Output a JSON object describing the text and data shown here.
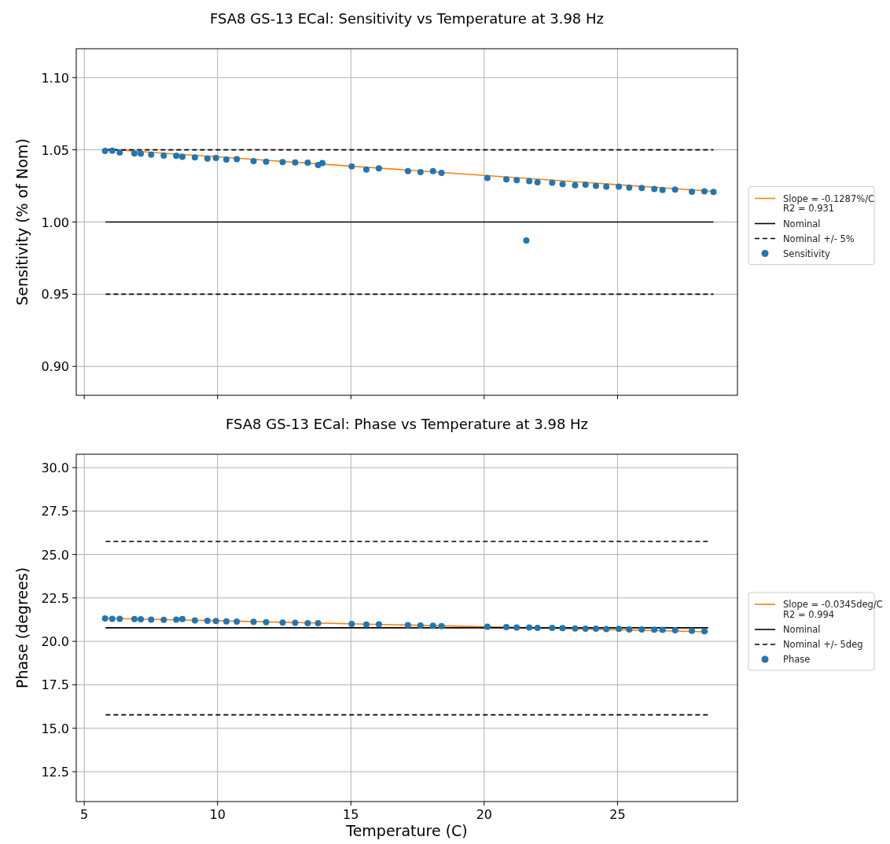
{
  "chart_data": [
    {
      "type": "scatter",
      "title": "FSA8 GS-13 ECal: Sensitivity vs Temperature at 3.98 Hz",
      "ylabel": "Sensitivity (% of Nom)",
      "xlim": [
        4.7,
        29.5
      ],
      "ylim": [
        0.88,
        1.12
      ],
      "xticks": [
        5,
        10,
        15,
        20,
        25
      ],
      "yticks": [
        {
          "value": 0.9,
          "label": "0.90"
        },
        {
          "value": 0.95,
          "label": "0.95"
        },
        {
          "value": 1.0,
          "label": "1.00"
        },
        {
          "value": 1.05,
          "label": "1.05"
        },
        {
          "value": 1.1,
          "label": "1.10"
        }
      ],
      "tick_labels": "y",
      "grid": true,
      "legend": "right",
      "series": [
        {
          "type": "line",
          "name": "Slope = -0.1287%/C\nR2 = 0.931",
          "color": "#ff7f0e",
          "x": [
            5.8,
            28.6
          ],
          "values": [
            1.0505,
            1.0212
          ],
          "line_style": "solid"
        },
        {
          "type": "line",
          "name": "Nominal",
          "color": "#000000",
          "x": [
            5.8,
            28.6
          ],
          "values": [
            1.0,
            1.0
          ],
          "line_style": "solid"
        },
        {
          "type": "line",
          "name": "Nominal +/- 5%",
          "color": "#000000",
          "x": [
            5.8,
            28.6
          ],
          "values": [
            1.05,
            1.05
          ],
          "line_style": "dashed"
        },
        {
          "type": "line",
          "color": "#000000",
          "x": [
            5.8,
            28.6
          ],
          "values": [
            0.95,
            0.95
          ],
          "line_style": "dashed"
        },
        {
          "name": "Sensitivity",
          "color": "#1f77b4",
          "marker": "circle",
          "x": [
            5.78,
            6.05,
            6.33,
            6.88,
            7.12,
            7.51,
            7.98,
            8.45,
            8.68,
            9.15,
            9.62,
            9.94,
            10.33,
            10.72,
            11.35,
            11.82,
            12.44,
            12.91,
            13.38,
            13.77,
            13.93,
            15.03,
            15.58,
            16.05,
            17.14,
            17.61,
            18.08,
            18.4,
            20.12,
            20.83,
            21.22,
            21.58,
            21.69,
            22.0,
            22.55,
            22.94,
            23.41,
            23.8,
            24.19,
            24.58,
            25.05,
            25.44,
            25.91,
            26.38,
            26.69,
            27.16,
            27.79,
            28.26,
            28.6
          ],
          "values": [
            1.0492,
            1.0494,
            1.0482,
            1.0475,
            1.0474,
            1.0466,
            1.046,
            1.0458,
            1.0452,
            1.0447,
            1.044,
            1.0443,
            1.0432,
            1.0435,
            1.0422,
            1.0418,
            1.0415,
            1.0412,
            1.0411,
            1.0395,
            1.0408,
            1.0385,
            1.0363,
            1.0372,
            1.0352,
            1.0345,
            1.0352,
            1.034,
            1.0305,
            1.0295,
            1.029,
            0.9872,
            1.0283,
            1.0275,
            1.0272,
            1.0262,
            1.0255,
            1.0258,
            1.025,
            1.0245,
            1.0245,
            1.0238,
            1.0236,
            1.0228,
            1.0222,
            1.0225,
            1.021,
            1.0212,
            1.0208
          ]
        }
      ]
    },
    {
      "type": "scatter",
      "title": "FSA8 GS-13 ECal: Phase vs Temperature at 3.98 Hz",
      "xlabel": "Temperature (C)",
      "ylabel": "Phase (degrees)",
      "xlim": [
        4.7,
        29.5
      ],
      "ylim": [
        10.78,
        30.77
      ],
      "xticks": [
        5,
        10,
        15,
        20,
        25
      ],
      "yticks": [
        {
          "value": 12.5,
          "label": "12.5"
        },
        {
          "value": 15,
          "label": "15.0"
        },
        {
          "value": 17.5,
          "label": "17.5"
        },
        {
          "value": 20,
          "label": "20.0"
        },
        {
          "value": 22.5,
          "label": "22.5"
        },
        {
          "value": 25,
          "label": "25.0"
        },
        {
          "value": 27.5,
          "label": "27.5"
        },
        {
          "value": 30,
          "label": "30.0"
        }
      ],
      "grid": true,
      "legend": "right",
      "series": [
        {
          "type": "line",
          "name": "Slope = -0.0345deg/C\nR2 = 0.994",
          "color": "#ff7f0e",
          "x": [
            5.8,
            28.4
          ],
          "values": [
            21.33,
            20.55
          ],
          "line_style": "solid"
        },
        {
          "type": "line",
          "name": "Nominal",
          "color": "#000000",
          "x": [
            5.8,
            28.4
          ],
          "values": [
            20.78,
            20.78
          ],
          "line_style": "solid"
        },
        {
          "type": "line",
          "name": "Nominal +/- 5deg",
          "color": "#000000",
          "x": [
            5.8,
            28.4
          ],
          "values": [
            25.75,
            25.75
          ],
          "line_style": "dashed"
        },
        {
          "type": "line",
          "color": "#000000",
          "x": [
            5.8,
            28.4
          ],
          "values": [
            15.77,
            15.77
          ],
          "line_style": "dashed"
        },
        {
          "name": "Phase",
          "color": "#1f77b4",
          "marker": "circle",
          "x": [
            5.78,
            6.05,
            6.33,
            6.88,
            7.12,
            7.51,
            7.98,
            8.45,
            8.68,
            9.15,
            9.62,
            9.94,
            10.33,
            10.72,
            11.35,
            11.82,
            12.44,
            12.91,
            13.38,
            13.77,
            15.03,
            15.58,
            16.05,
            17.14,
            17.61,
            18.08,
            18.4,
            20.12,
            20.83,
            21.22,
            21.69,
            22.0,
            22.55,
            22.94,
            23.41,
            23.8,
            24.19,
            24.58,
            25.05,
            25.44,
            25.91,
            26.38,
            26.69,
            27.16,
            27.79,
            28.26
          ],
          "values": [
            21.32,
            21.3,
            21.3,
            21.28,
            21.27,
            21.25,
            21.24,
            21.25,
            21.28,
            21.2,
            21.18,
            21.17,
            21.15,
            21.14,
            21.12,
            21.1,
            21.08,
            21.07,
            21.05,
            21.05,
            21.0,
            20.97,
            20.98,
            20.93,
            20.91,
            20.9,
            20.88,
            20.84,
            20.82,
            20.8,
            20.8,
            20.77,
            20.78,
            20.76,
            20.74,
            20.73,
            20.73,
            20.71,
            20.72,
            20.69,
            20.68,
            20.67,
            20.66,
            20.64,
            20.6,
            20.58
          ]
        }
      ]
    }
  ]
}
